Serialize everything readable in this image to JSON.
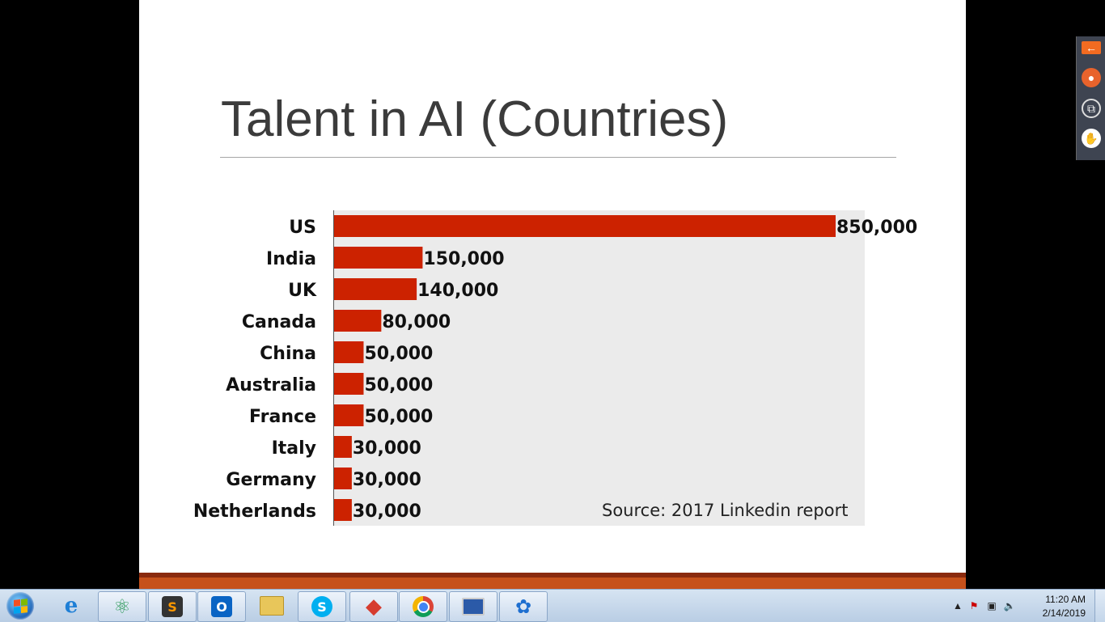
{
  "slide": {
    "title": "Talent in AI (Countries)"
  },
  "chart_data": {
    "type": "bar",
    "orientation": "horizontal",
    "title": "",
    "categories": [
      "US",
      "India",
      "UK",
      "Canada",
      "China",
      "Australia",
      "France",
      "Italy",
      "Germany",
      "Netherlands"
    ],
    "values": [
      850000,
      150000,
      140000,
      80000,
      50000,
      50000,
      50000,
      30000,
      30000,
      30000
    ],
    "value_labels": [
      "850,000",
      "150,000",
      "140,000",
      "80,000",
      "50,000",
      "50,000",
      "50,000",
      "30,000",
      "30,000",
      "30,000"
    ],
    "xlim": [
      0,
      900000
    ],
    "grid": false,
    "legend": "none",
    "annotation": "Source: 2017 Linkedin report",
    "colors": {
      "bar": "#cc2200",
      "panel": "#ebebeb"
    }
  },
  "presenter_toolbar": {
    "icons": [
      "back-arrow-icon",
      "microphone-icon",
      "copy-screen-icon",
      "raise-hand-icon"
    ]
  },
  "taskbar": {
    "apps": [
      "internet-explorer",
      "atom",
      "sublime-text",
      "outlook",
      "file-explorer",
      "skype",
      "git-extensions",
      "chrome",
      "remote-desktop",
      "network-app"
    ],
    "clock": {
      "time": "11:20 AM",
      "date": "2/14/2019"
    }
  }
}
